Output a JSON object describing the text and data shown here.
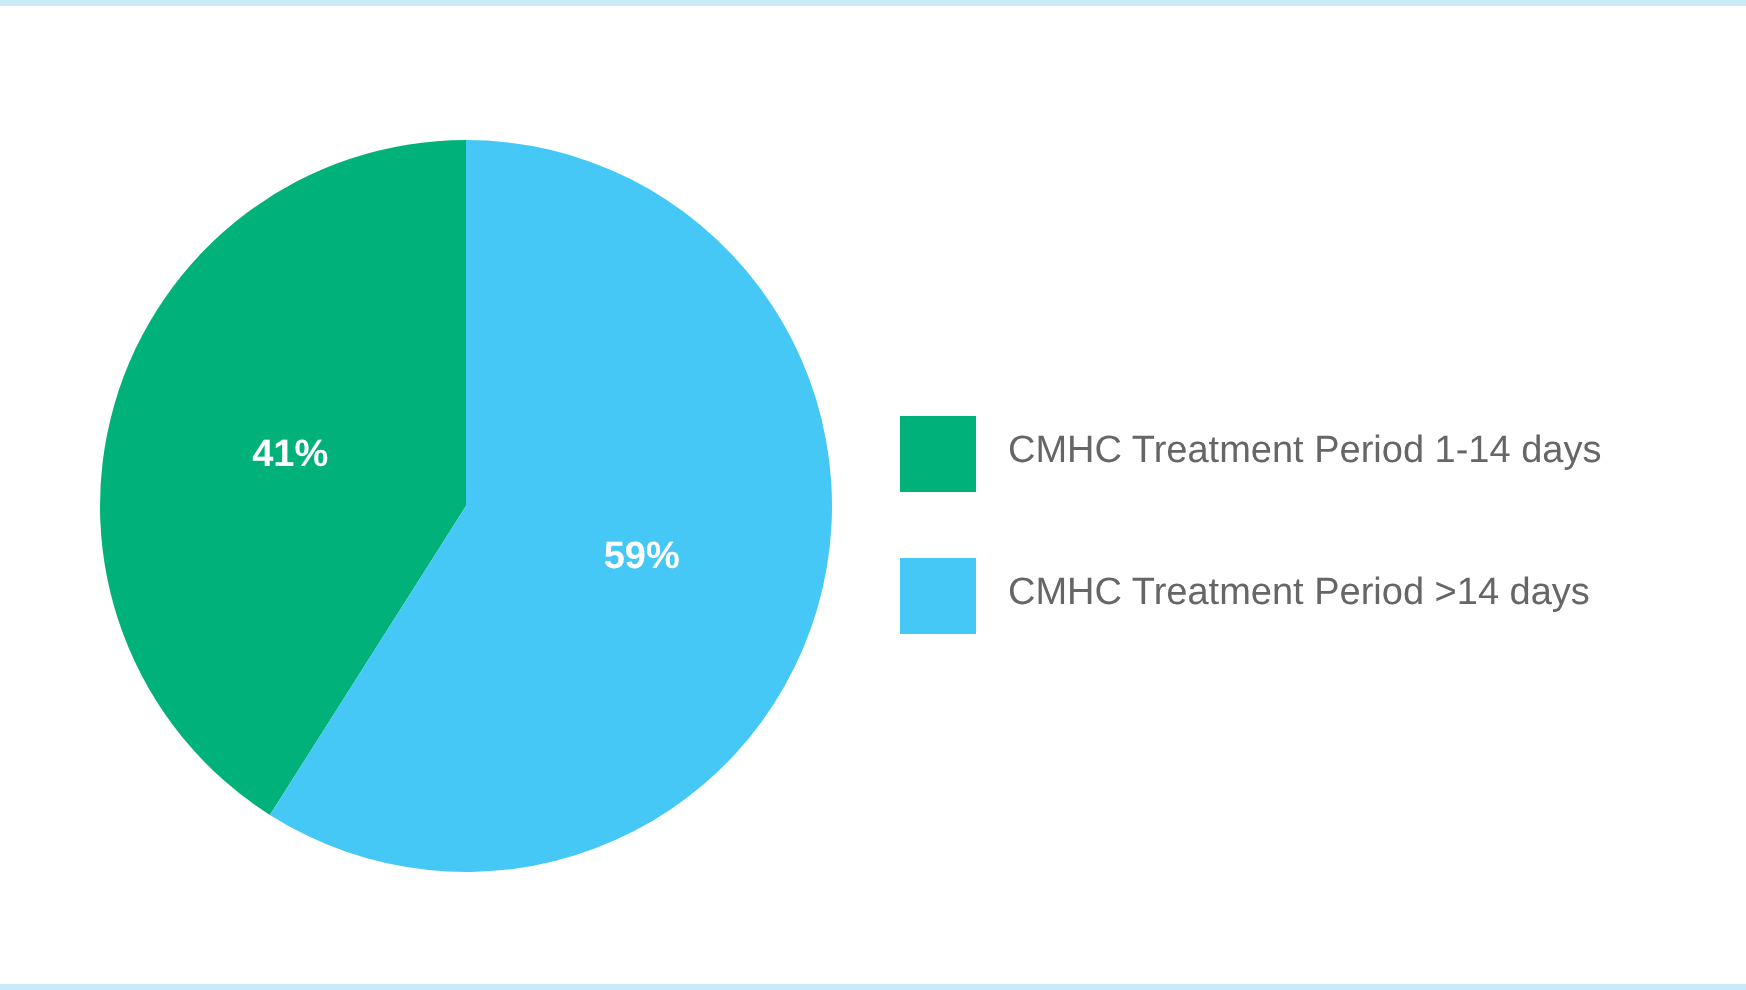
{
  "chart_data": {
    "type": "pie",
    "categories": [
      "CMHC Treatment Period 1-14 days",
      "CMHC Treatment Period >14 days"
    ],
    "values": [
      41,
      59
    ],
    "colors": [
      "#00b27a",
      "#45c8f5"
    ],
    "value_labels": [
      "41%",
      "59%"
    ],
    "legend": "right"
  }
}
